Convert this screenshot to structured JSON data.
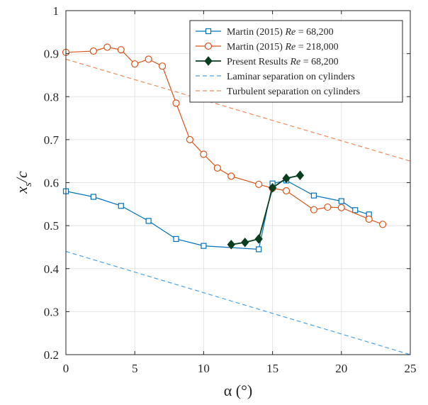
{
  "chart_data": {
    "type": "line",
    "xlabel": "α (°)",
    "ylabel": "x_s/c",
    "xlim": [
      0,
      25
    ],
    "ylim": [
      0.2,
      1.0
    ],
    "grid": true,
    "legend_position": "top-right",
    "x_ticks": [
      "0",
      "5",
      "10",
      "15",
      "20",
      "25"
    ],
    "y_ticks": [
      "0.2",
      "0.3",
      "0.4",
      "0.5",
      "0.6",
      "0.7",
      "0.8",
      "0.9",
      "1"
    ],
    "series": [
      {
        "name_prefix": "Martin (2015) ",
        "name_italic": "Re",
        "name_suffix": " = 68,200",
        "color": "#0072BD",
        "marker": "square",
        "style": "solid",
        "x": [
          0,
          2,
          4,
          6,
          8,
          10,
          14,
          15,
          16,
          18,
          20,
          21,
          22
        ],
        "y": [
          0.58,
          0.567,
          0.546,
          0.511,
          0.469,
          0.453,
          0.445,
          0.598,
          0.605,
          0.57,
          0.557,
          0.536,
          0.526
        ]
      },
      {
        "name_prefix": "Martin (2015) ",
        "name_italic": "Re",
        "name_suffix": " = 218,000",
        "color": "#D95319",
        "marker": "circle",
        "style": "solid",
        "x": [
          0,
          2,
          3,
          4,
          5,
          6,
          7,
          8,
          9,
          10,
          11,
          12,
          14,
          15,
          16,
          18,
          19,
          20,
          22,
          23
        ],
        "y": [
          0.903,
          0.906,
          0.915,
          0.909,
          0.876,
          0.887,
          0.871,
          0.785,
          0.7,
          0.666,
          0.634,
          0.615,
          0.596,
          0.587,
          0.581,
          0.537,
          0.543,
          0.542,
          0.515,
          0.503
        ]
      },
      {
        "name_prefix": "Present Results ",
        "name_italic": "Re",
        "name_suffix": " = 68,200",
        "color": "#0B3D1F",
        "marker": "diamond",
        "style": "solid",
        "x": [
          12,
          13,
          14,
          15,
          16,
          17
        ],
        "y": [
          0.456,
          0.461,
          0.469,
          0.588,
          0.61,
          0.617
        ]
      },
      {
        "name_prefix": "Laminar separation on cylinders",
        "name_italic": "",
        "name_suffix": "",
        "color": "#4DA3E0",
        "marker": "none",
        "style": "dashed",
        "x": [
          0,
          25
        ],
        "y": [
          0.44,
          0.2
        ]
      },
      {
        "name_prefix": "Turbulent separation on cylinders",
        "name_italic": "",
        "name_suffix": "",
        "color": "#F08A5A",
        "marker": "none",
        "style": "dashed",
        "x": [
          0,
          25
        ],
        "y": [
          0.887,
          0.65
        ]
      }
    ]
  }
}
